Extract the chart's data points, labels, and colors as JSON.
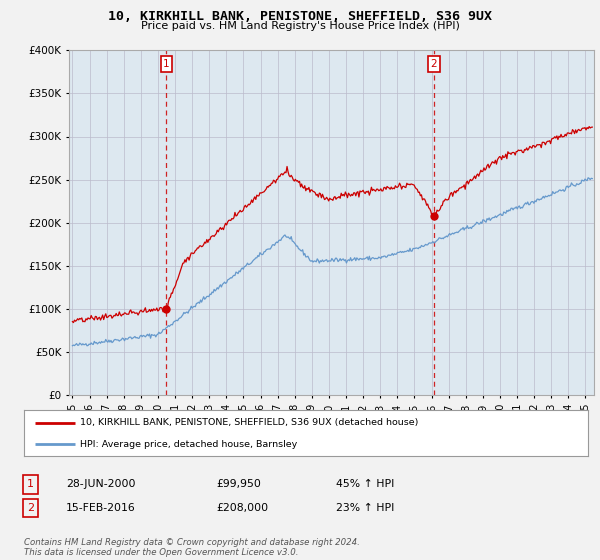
{
  "title": "10, KIRKHILL BANK, PENISTONE, SHEFFIELD, S36 9UX",
  "subtitle": "Price paid vs. HM Land Registry's House Price Index (HPI)",
  "legend_line1": "10, KIRKHILL BANK, PENISTONE, SHEFFIELD, S36 9UX (detached house)",
  "legend_line2": "HPI: Average price, detached house, Barnsley",
  "sale1_date": "28-JUN-2000",
  "sale1_price": "£99,950",
  "sale1_hpi": "45% ↑ HPI",
  "sale1_year": 2000.5,
  "sale1_value": 99950,
  "sale2_date": "15-FEB-2016",
  "sale2_price": "£208,000",
  "sale2_hpi": "23% ↑ HPI",
  "sale2_year": 2016.12,
  "sale2_value": 208000,
  "footer": "Contains HM Land Registry data © Crown copyright and database right 2024.\nThis data is licensed under the Open Government Licence v3.0.",
  "ylim": [
    0,
    400000
  ],
  "xlim_start": 1994.8,
  "xlim_end": 2025.5,
  "line_color_red": "#cc0000",
  "line_color_blue": "#6699cc",
  "vline_color": "#cc0000",
  "background_color": "#f2f2f2",
  "plot_bg_color": "#dde8f0"
}
